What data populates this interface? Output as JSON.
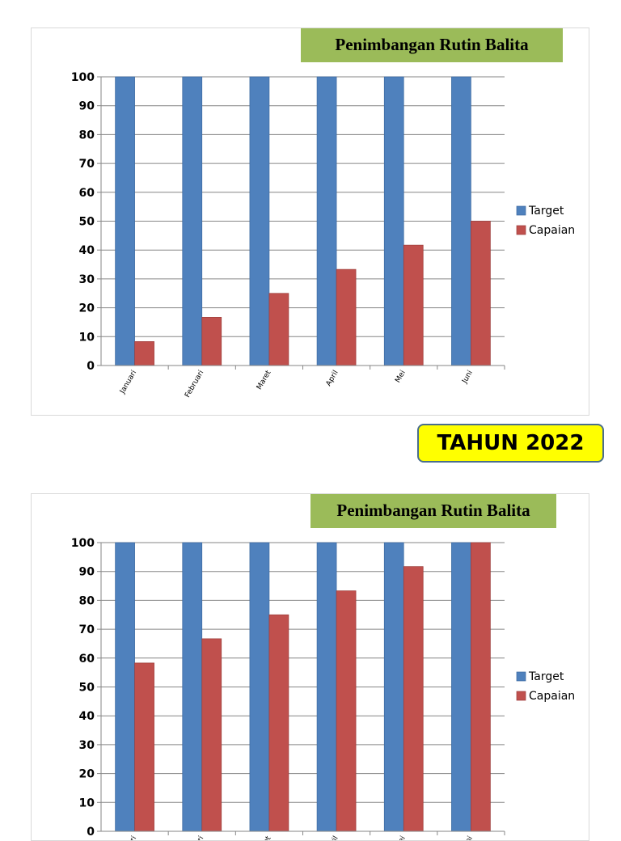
{
  "tahun_label": "TAHUN 2022",
  "chart_data": [
    {
      "type": "bar",
      "title": "Penimbangan Rutin Balita",
      "categories": [
        "Januari",
        "Februari",
        "Maret",
        "April",
        "Mei",
        "Juni"
      ],
      "series": [
        {
          "name": "Target",
          "color": "#4f81bd",
          "values": [
            100,
            100,
            100,
            100,
            100,
            100
          ]
        },
        {
          "name": "Capaian",
          "color": "#c0504d",
          "values": [
            8.3,
            16.7,
            25,
            33.3,
            41.7,
            50
          ]
        }
      ],
      "ylim": [
        0,
        100
      ],
      "yticks": [
        0,
        10,
        20,
        30,
        40,
        50,
        60,
        70,
        80,
        90,
        100
      ],
      "grid": true,
      "legend": "right"
    },
    {
      "type": "bar",
      "title": "Penimbangan Rutin Balita",
      "categories": [
        "Januari",
        "Februari",
        "Maret",
        "April",
        "Mei",
        "Juni"
      ],
      "series": [
        {
          "name": "Target",
          "color": "#4f81bd",
          "values": [
            100,
            100,
            100,
            100,
            100,
            100
          ]
        },
        {
          "name": "Capaian",
          "color": "#c0504d",
          "values": [
            58.3,
            66.7,
            75,
            83.3,
            91.7,
            100
          ]
        }
      ],
      "ylim": [
        0,
        100
      ],
      "yticks": [
        0,
        10,
        20,
        30,
        40,
        50,
        60,
        70,
        80,
        90,
        100
      ],
      "grid": true,
      "legend": "right"
    }
  ]
}
